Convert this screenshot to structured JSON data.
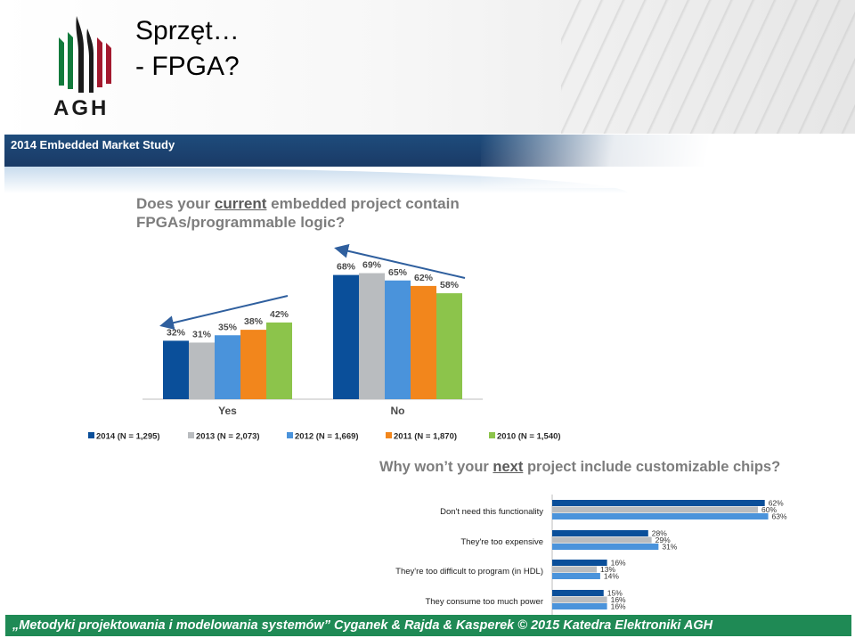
{
  "slide": {
    "title_line1": "Sprzęt…",
    "title_line2": "- FPGA?",
    "logo_text": "AGH",
    "banner": "2014 Embedded Market Study",
    "footer": "„Metodyki projektowania i modelowania systemów” Cyganek & Rajda & Kasperek © 2015 Katedra Elektroniki AGH"
  },
  "colors": {
    "footer_bg": "#1f8a55",
    "banner_bg": "#1a3a66",
    "logo_green": "#127a3c",
    "logo_red": "#a3192e"
  },
  "chart_data": [
    {
      "type": "bar",
      "title_parts": [
        "Does your ",
        "current",
        " embedded project contain FPGAs/programmable logic?"
      ],
      "categories": [
        "Yes",
        "No"
      ],
      "series": [
        {
          "name": "2014 (N = 1,295)",
          "color": "#0a4f9a",
          "values": [
            32,
            68
          ],
          "labels": [
            "32%",
            "68%"
          ]
        },
        {
          "name": "2013 (N = 2,073)",
          "color": "#b9bcbf",
          "values": [
            31,
            69
          ],
          "labels": [
            "31%",
            "69%"
          ]
        },
        {
          "name": "2012 (N = 1,669)",
          "color": "#4a93db",
          "values": [
            35,
            65
          ],
          "labels": [
            "35%",
            "65%"
          ]
        },
        {
          "name": "2011 (N = 1,870)",
          "color": "#f2861c",
          "values": [
            38,
            62
          ],
          "labels": [
            "38%",
            "62%"
          ]
        },
        {
          "name": "2010 (N = 1,540)",
          "color": "#8cc44b",
          "values": [
            42,
            58
          ],
          "labels": [
            "42%",
            "58%"
          ]
        }
      ],
      "legend": "bottom",
      "grid": false
    },
    {
      "type": "bar",
      "orientation": "horizontal",
      "title_parts": [
        "Why won’t your ",
        "next",
        " project include customizable chips?"
      ],
      "categories": [
        "Don't need this functionality",
        "They're too expensive",
        "They're too difficult to program (in HDL)",
        "They consume too much power"
      ],
      "series": [
        {
          "color": "#0a4f9a",
          "values": [
            62,
            28,
            16,
            15
          ],
          "labels": [
            "62%",
            "28%",
            "16%",
            "15%"
          ]
        },
        {
          "color": "#b9bcbf",
          "values": [
            60,
            29,
            13,
            16
          ],
          "labels": [
            "60%",
            "29%",
            "13%",
            "16%"
          ]
        },
        {
          "color": "#4a93db",
          "values": [
            63,
            31,
            14,
            16
          ],
          "labels": [
            "63%",
            "31%",
            "14%",
            "16%"
          ]
        }
      ],
      "grid": false
    }
  ]
}
